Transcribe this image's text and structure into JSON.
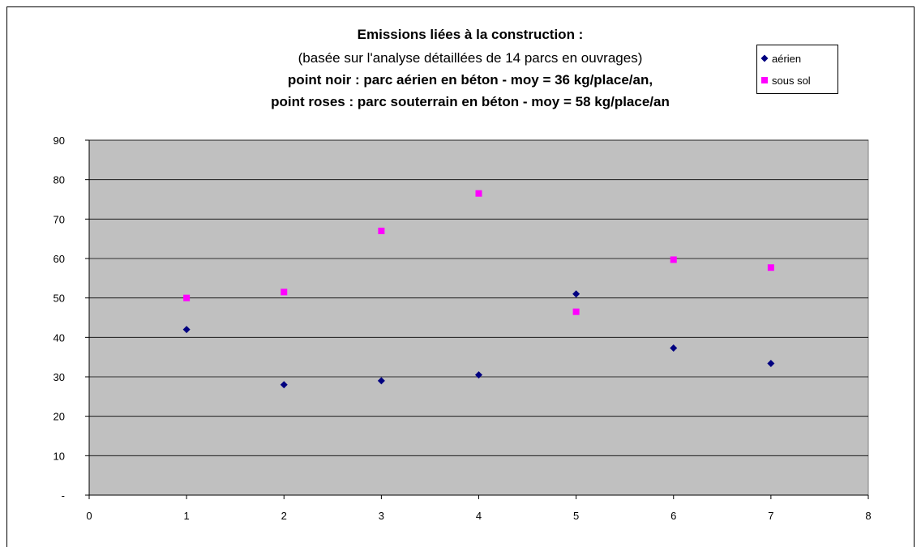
{
  "chart_data": {
    "type": "scatter",
    "title_lines": [
      "Emissions liées à la construction :",
      "(basée sur l'analyse détaillées de 14 parcs en ouvrages)",
      "point noir : parc aérien en béton - moy = 36 kg/place/an,",
      "point roses : parc souterrain en béton - moy = 58 kg/place/an"
    ],
    "xlabel": "",
    "ylabel": "",
    "xlim": [
      0,
      8
    ],
    "ylim": [
      0,
      90
    ],
    "x_ticks": [
      0,
      1,
      2,
      3,
      4,
      5,
      6,
      7,
      8
    ],
    "y_ticks": [
      0,
      10,
      20,
      30,
      40,
      50,
      60,
      70,
      80,
      90
    ],
    "y_tick_labels": [
      "-",
      "10",
      "20",
      "30",
      "40",
      "50",
      "60",
      "70",
      "80",
      "90"
    ],
    "grid": "horizontal",
    "plot_background": "#c0c0c0",
    "legend_position": "top-right",
    "series": [
      {
        "name": "aérien",
        "marker": "diamond",
        "color": "#000080",
        "points": [
          [
            1,
            42
          ],
          [
            2,
            28
          ],
          [
            3,
            29
          ],
          [
            4,
            30.5
          ],
          [
            5,
            51
          ],
          [
            6,
            37.3
          ],
          [
            7,
            33.4
          ]
        ]
      },
      {
        "name": "sous sol",
        "marker": "square",
        "color": "#ff00ff",
        "points": [
          [
            1,
            50
          ],
          [
            2,
            51.5
          ],
          [
            3,
            67
          ],
          [
            4,
            76.5
          ],
          [
            5,
            46.5
          ],
          [
            6,
            59.7
          ],
          [
            7,
            57.7
          ]
        ]
      }
    ]
  }
}
